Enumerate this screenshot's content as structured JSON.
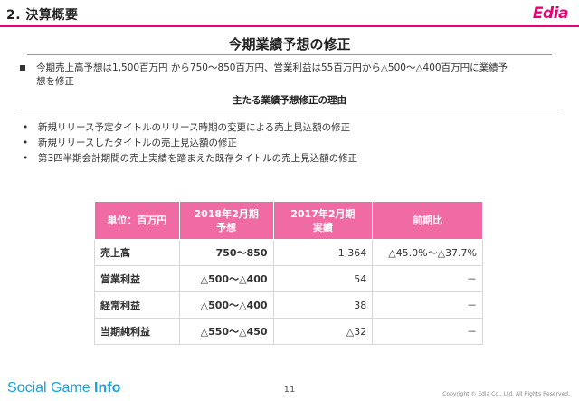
{
  "header": {
    "section_title": "2. 決算概要",
    "logo_text": "Edia",
    "accent_color": "#e60073"
  },
  "main": {
    "title": "今期業績予想の修正",
    "summary_line1": "今期売上高予想は1,500百万円 から750～850百万円、営業利益は55百万円から△500～△400百万円に業績予",
    "summary_line2": "想を修正",
    "reasons_title": "主たる業績予想修正の理由",
    "reasons": [
      "新規リリース予定タイトルのリリース時期の変更による売上見込額の修正",
      "新規リリースしたタイトルの売上見込額の修正",
      "第3四半期会計期間の売上実績を踏まえた既存タイトルの売上見込額の修正"
    ],
    "bullet_glyph": "•"
  },
  "table": {
    "header_color": "#f06ba3",
    "headers": {
      "unit": "単位：百万円",
      "col1_line1": "2018年2月期",
      "col1_line2": "予想",
      "col2_line1": "2017年2月期",
      "col2_line2": "実績",
      "col3": "前期比"
    },
    "rows": [
      {
        "label": "売上高",
        "forecast": "750～850",
        "actual": "1,364",
        "change": "△45.0%～△37.7%"
      },
      {
        "label": "営業利益",
        "forecast": "△500～△400",
        "actual": "54",
        "change": "－"
      },
      {
        "label": "経常利益",
        "forecast": "△500～△400",
        "actual": "38",
        "change": "－"
      },
      {
        "label": "当期純利益",
        "forecast": "△550～△450",
        "actual": "△32",
        "change": "－"
      }
    ]
  },
  "footer": {
    "brand_main": "Social Game ",
    "brand_bold": "Info",
    "page_number": "11",
    "copyright": "Copyright © Edia Co., Ltd. All Rights Reserved."
  }
}
